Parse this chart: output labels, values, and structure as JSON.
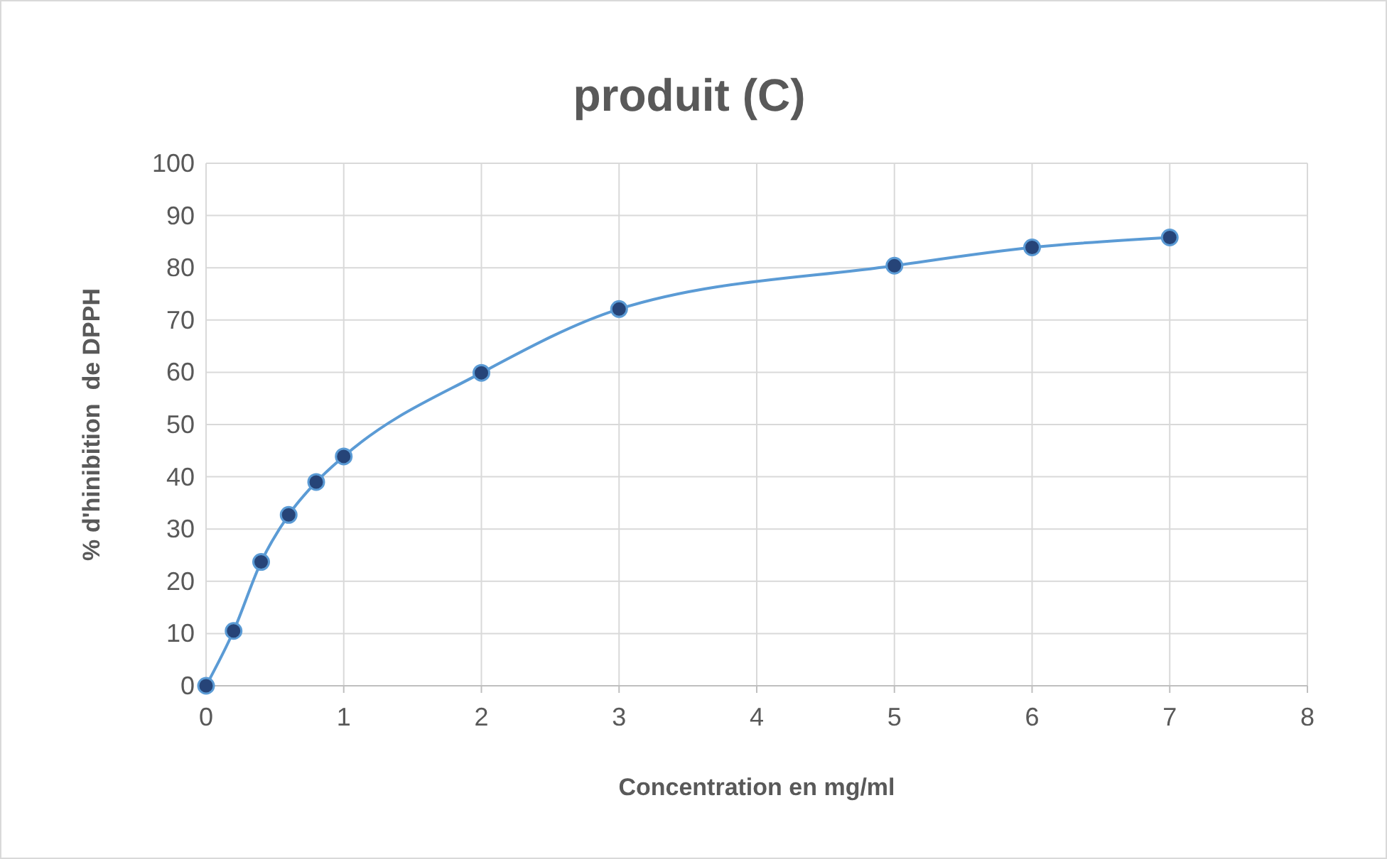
{
  "chart_data": {
    "type": "line",
    "title": "produit (C)",
    "xlabel": "Concentration en mg/ml",
    "ylabel": "% d'hinibition  de DPPH",
    "x": [
      0,
      0.2,
      0.4,
      0.6,
      0.8,
      1,
      2,
      3,
      5,
      6,
      7
    ],
    "series": [
      {
        "color": "#5b9bd5",
        "values": [
          0,
          10.5,
          23.7,
          32.7,
          39,
          43.9,
          59.9,
          72.1,
          80.4,
          83.9,
          85.8
        ]
      }
    ],
    "xlim": [
      0,
      8
    ],
    "xticks": [
      0,
      1,
      2,
      3,
      4,
      5,
      6,
      7,
      8
    ],
    "ylim": [
      0,
      100
    ],
    "yticks": [
      0,
      10,
      20,
      30,
      40,
      50,
      60,
      70,
      80,
      90,
      100
    ],
    "grid": true,
    "marker": "circle",
    "line_style": "solid"
  }
}
